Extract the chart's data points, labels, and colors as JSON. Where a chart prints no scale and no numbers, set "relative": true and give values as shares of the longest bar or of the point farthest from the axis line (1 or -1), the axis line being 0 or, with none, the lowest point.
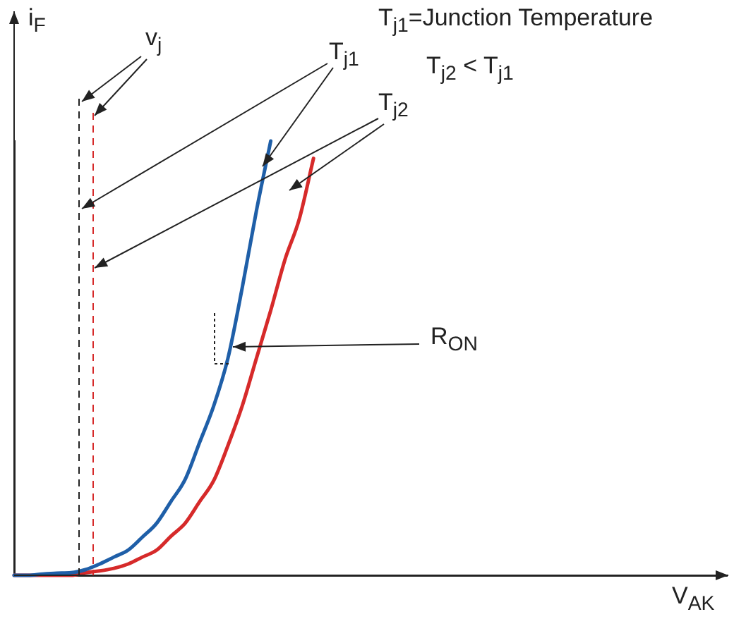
{
  "chart_data": {
    "type": "line",
    "relative": true,
    "legend": false,
    "grid": false,
    "marker": "none",
    "line_style": "solid",
    "xlabel": "V$_{AK}$",
    "ylabel": "i$_{F}$",
    "annotations": [
      "T$_{j1}$=Junction Temperature",
      "T$_{j2}$ < T$_{j1}$",
      "v$_{j}$",
      "T$_{j1}$",
      "T$_{j2}$",
      "R$_{ON}$"
    ],
    "categories": [
      null,
      null,
      null,
      null,
      null,
      null,
      null,
      null,
      null,
      null,
      null,
      null,
      null,
      null,
      null,
      null,
      null,
      null,
      null,
      null,
      null,
      null,
      null,
      null,
      null,
      null,
      null,
      null,
      null,
      null,
      null,
      null,
      null,
      null,
      null,
      null,
      null,
      null,
      null,
      null,
      null,
      null,
      null,
      null,
      null,
      null,
      null,
      null,
      null,
      null,
      null
    ],
    "series": [
      {
        "color": "#1f5fa8",
        "values": [
          0,
          0,
          0.003,
          0.005,
          0.006,
          0.013,
          0.026,
          0.042,
          0.058,
          0.088,
          0.12,
          0.17,
          0.221,
          0.305,
          0.39,
          0.5,
          0.662,
          0.84,
          1.0,
          null,
          null,
          null,
          null,
          null,
          null,
          null,
          null,
          null,
          null,
          null,
          null,
          null,
          null,
          null,
          null,
          null,
          null,
          null,
          null,
          null,
          null,
          null,
          null,
          null,
          null,
          null,
          null,
          null,
          null,
          null,
          null
        ]
      },
      {
        "color": "#d62a2a",
        "values": [
          0,
          0,
          0,
          0,
          0,
          0.006,
          0.01,
          0.016,
          0.026,
          0.042,
          0.058,
          0.09,
          0.12,
          0.169,
          0.218,
          0.299,
          0.39,
          0.5,
          0.61,
          0.727,
          0.82,
          0.96,
          null,
          null,
          null,
          null,
          null,
          null,
          null,
          null,
          null,
          null,
          null,
          null,
          null,
          null,
          null,
          null,
          null,
          null,
          null,
          null,
          null,
          null,
          null,
          null,
          null,
          null,
          null,
          null,
          null
        ]
      }
    ]
  }
}
